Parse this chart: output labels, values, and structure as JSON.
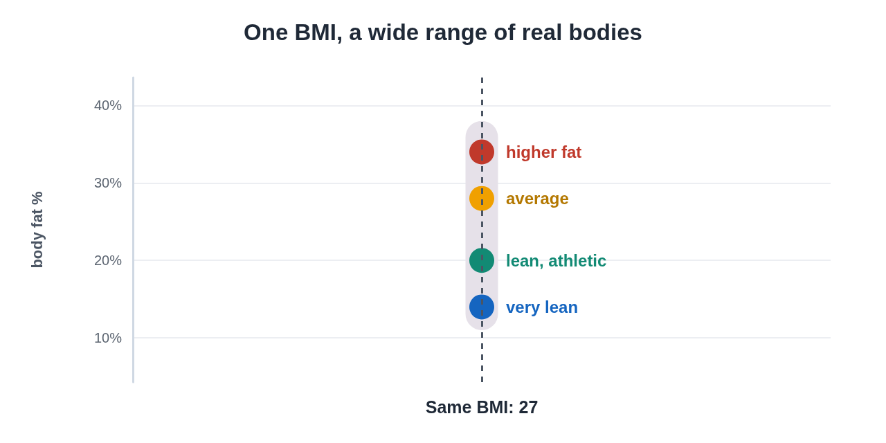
{
  "chart_data": {
    "type": "scatter",
    "title": "One BMI, a wide range of real bodies",
    "ylabel": "body fat %",
    "categories": [
      "Same BMI: 27"
    ],
    "ylim": [
      4.3,
      43.6
    ],
    "yticks": [
      {
        "value": 10,
        "label": "10%"
      },
      {
        "value": 20,
        "label": "20%"
      },
      {
        "value": 30,
        "label": "30%"
      },
      {
        "value": 40,
        "label": "40%"
      }
    ],
    "grid": "y",
    "legend": false,
    "marker": "circle",
    "ref_lines": [
      {
        "axis": "x",
        "value": "Same BMI: 27",
        "color": "#4b5563",
        "line_style": "dashed"
      }
    ],
    "series": [
      {
        "type": "bar",
        "color": "#e6e1e9",
        "base": [
          11
        ],
        "values": [
          27
        ]
      },
      {
        "name": "higher fat",
        "color": "#c0392b",
        "values": [
          34
        ]
      },
      {
        "name": "average",
        "color": "#f0a000",
        "values": [
          28
        ]
      },
      {
        "name": "lean, athletic",
        "color": "#128a74",
        "values": [
          20
        ]
      },
      {
        "name": "very lean",
        "color": "#1565c0",
        "values": [
          14
        ]
      }
    ]
  }
}
